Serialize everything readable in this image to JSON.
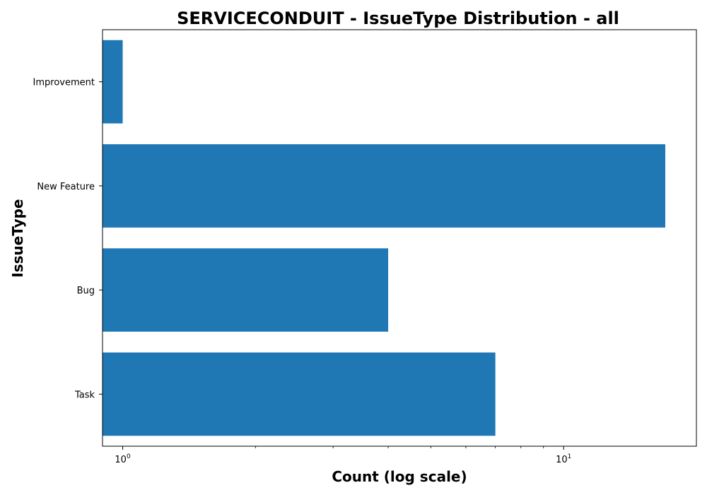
{
  "chart_data": {
    "type": "bar",
    "orientation": "horizontal",
    "title": "SERVICECONDUIT - IssueType Distribution - all",
    "xlabel": "Count (log scale)",
    "ylabel": "IssueType",
    "x_scale": "log",
    "xlim": [
      0.9,
      20
    ],
    "x_ticks": [
      {
        "value": 1,
        "base": "10",
        "exponent": "0"
      },
      {
        "value": 10,
        "base": "10",
        "exponent": "1"
      }
    ],
    "categories": [
      "Improvement",
      "New Feature",
      "Bug",
      "Task"
    ],
    "values": [
      1,
      17,
      4,
      7
    ],
    "bar_color": "#1f77b4",
    "grid": false,
    "legend": false
  }
}
